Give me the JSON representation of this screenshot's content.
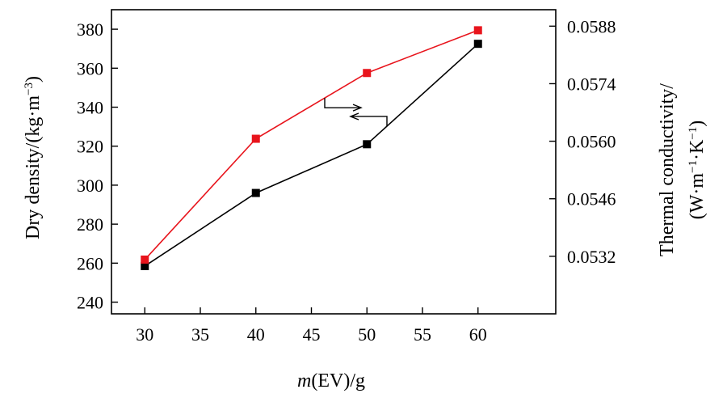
{
  "chart_data": {
    "type": "line",
    "x": [
      30,
      40,
      50,
      60
    ],
    "xlim": [
      27,
      67
    ],
    "xticks": [
      "30",
      "35",
      "40",
      "45",
      "50",
      "55",
      "60"
    ],
    "xlabel_italic": "m",
    "xlabel_rest": "(EV)/g",
    "y_left": {
      "label": "Dry density/(kg·m",
      "label_sup": "−3",
      "label_close": ")",
      "lim": [
        234,
        390
      ],
      "ticks": [
        "240",
        "260",
        "280",
        "300",
        "320",
        "340",
        "360",
        "380"
      ]
    },
    "y_right": {
      "label_line1": "Thermal conductivity/",
      "label_line2_a": "(W·m",
      "label_line2_sup1": "−1",
      "label_line2_b": "·K",
      "label_line2_sup2": "−1",
      "label_line2_c": ")",
      "lim": [
        0.0518,
        0.0592
      ],
      "ticks": [
        "0.0532",
        "0.0546",
        "0.0560",
        "0.0574",
        "0.0588"
      ]
    },
    "series": [
      {
        "axis": "left",
        "color": "#000000",
        "values": [
          258.5,
          296,
          321,
          372.5
        ]
      },
      {
        "axis": "right",
        "color": "#e8141c",
        "values": [
          0.05312,
          0.05606,
          0.05766,
          0.0587
        ]
      }
    ],
    "annotations": [
      {
        "series_index": 1,
        "direction": "right"
      },
      {
        "series_index": 0,
        "direction": "left"
      }
    ],
    "grid": false
  }
}
